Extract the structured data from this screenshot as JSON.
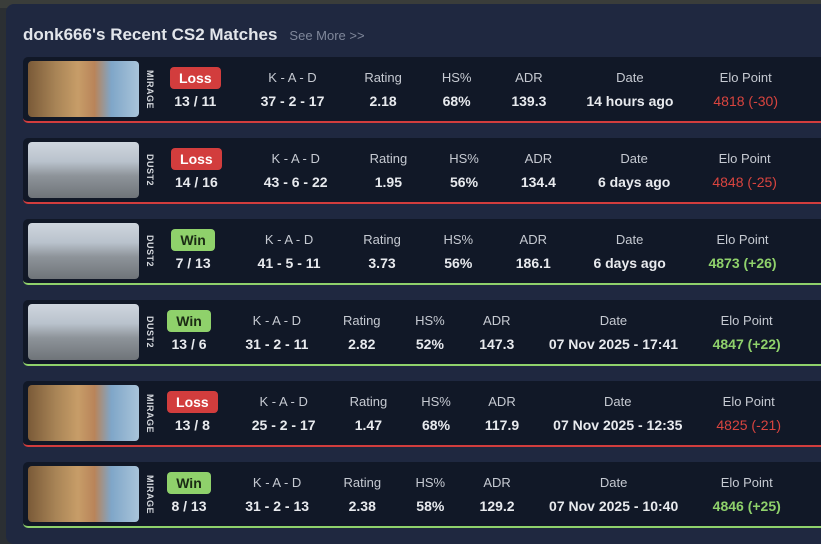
{
  "header": {
    "title": "donk666's Recent CS2 Matches",
    "see_more": "See More >>"
  },
  "columns": {
    "kad": "K - A - D",
    "rating": "Rating",
    "hs": "HS%",
    "adr": "ADR",
    "date": "Date",
    "elo": "Elo Point"
  },
  "colors": {
    "loss": "#d23d3d",
    "win": "#8fd16b",
    "panel": "#1f2840",
    "row": "#111827"
  },
  "matches": [
    {
      "map": "MIRAGE",
      "result": "Loss",
      "score": "13 / 11",
      "kad": "37 - 2 - 17",
      "rating": "2.18",
      "hs": "68%",
      "adr": "139.3",
      "date": "14 hours ago",
      "elo": "4818 (-30)"
    },
    {
      "map": "DUST2",
      "result": "Loss",
      "score": "14 / 16",
      "kad": "43 - 6 - 22",
      "rating": "1.95",
      "hs": "56%",
      "adr": "134.4",
      "date": "6 days ago",
      "elo": "4848 (-25)"
    },
    {
      "map": "DUST2",
      "result": "Win",
      "score": "7 / 13",
      "kad": "41 - 5 - 11",
      "rating": "3.73",
      "hs": "56%",
      "adr": "186.1",
      "date": "6 days ago",
      "elo": "4873 (+26)"
    },
    {
      "map": "DUST2",
      "result": "Win",
      "score": "13 / 6",
      "kad": "31 - 2 - 11",
      "rating": "2.82",
      "hs": "52%",
      "adr": "147.3",
      "date": "07 Nov 2025 - 17:41",
      "elo": "4847 (+22)"
    },
    {
      "map": "MIRAGE",
      "result": "Loss",
      "score": "13 / 8",
      "kad": "25 - 2 - 17",
      "rating": "1.47",
      "hs": "68%",
      "adr": "117.9",
      "date": "07 Nov 2025 - 12:35",
      "elo": "4825 (-21)"
    },
    {
      "map": "MIRAGE",
      "result": "Win",
      "score": "8 / 13",
      "kad": "31 - 2 - 13",
      "rating": "2.38",
      "hs": "58%",
      "adr": "129.2",
      "date": "07 Nov 2025 - 10:40",
      "elo": "4846 (+25)"
    }
  ]
}
